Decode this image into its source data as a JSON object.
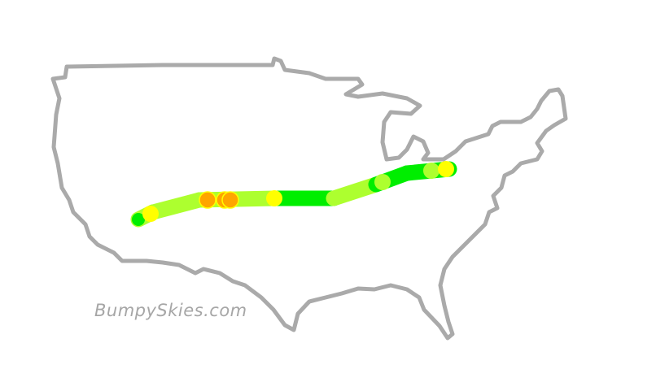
{
  "watermark": "BumpySkies.com",
  "colors": {
    "outline": "#aaaaaa",
    "smooth": "#00ee00",
    "light": "#adff2f",
    "moderate": "#ffff00",
    "severe": "#ffa500"
  },
  "route": {
    "segments": [
      {
        "level": "light"
      },
      {
        "level": "light"
      },
      {
        "level": "light"
      },
      {
        "level": "smooth"
      },
      {
        "level": "light"
      },
      {
        "level": "smooth"
      }
    ],
    "markers": [
      {
        "level": "smooth"
      },
      {
        "level": "moderate"
      },
      {
        "level": "severe"
      },
      {
        "level": "severe"
      },
      {
        "level": "severe"
      },
      {
        "level": "moderate"
      },
      {
        "level": "light"
      },
      {
        "level": "light"
      },
      {
        "level": "moderate"
      }
    ]
  }
}
